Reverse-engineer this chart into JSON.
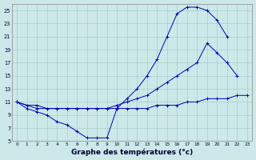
{
  "xlabel": "Graphe des températures (°c)",
  "bg_color": "#cce8e8",
  "grid_color": "#aacccc",
  "line_color": "#0000bb",
  "ylim": [
    5,
    26
  ],
  "yticks": [
    5,
    7,
    9,
    11,
    13,
    15,
    17,
    19,
    21,
    23,
    25
  ],
  "curve_upper_x": [
    0,
    1,
    2,
    3,
    4,
    5,
    6,
    7,
    8,
    9,
    10,
    11,
    12,
    13,
    14,
    15,
    16,
    17,
    18,
    19,
    20,
    21,
    22,
    23
  ],
  "curve_upper_y": [
    11,
    10,
    9.5,
    9,
    8,
    7.5,
    6.5,
    5.5,
    5.5,
    5.5,
    10,
    11.5,
    13,
    15,
    17.5,
    21,
    24.5,
    25.5,
    25.5,
    25,
    23.5,
    21,
    null,
    null
  ],
  "curve_mid_x": [
    0,
    1,
    2,
    3,
    4,
    5,
    6,
    7,
    8,
    9,
    10,
    11,
    12,
    13,
    14,
    15,
    16,
    17,
    18,
    19,
    20,
    21,
    22,
    23
  ],
  "curve_mid_y": [
    11,
    10.5,
    10.5,
    10,
    10,
    10,
    10,
    10,
    10,
    10,
    10.5,
    11,
    11.5,
    12,
    13,
    14,
    15,
    16,
    17,
    20,
    18.5,
    17,
    15,
    null
  ],
  "curve_dew_x": [
    0,
    1,
    2,
    3,
    4,
    5,
    6,
    7,
    8,
    9,
    10,
    11,
    12,
    13,
    14,
    15,
    16,
    17,
    18,
    19,
    20,
    21,
    22,
    23
  ],
  "curve_dew_y": [
    11,
    10.5,
    10,
    10,
    10,
    10,
    10,
    10,
    10,
    10,
    10,
    10,
    10,
    10,
    10.5,
    10.5,
    10.5,
    11,
    11,
    11.5,
    11.5,
    11.5,
    12,
    12
  ],
  "figsize": [
    3.2,
    2.0
  ],
  "dpi": 100
}
